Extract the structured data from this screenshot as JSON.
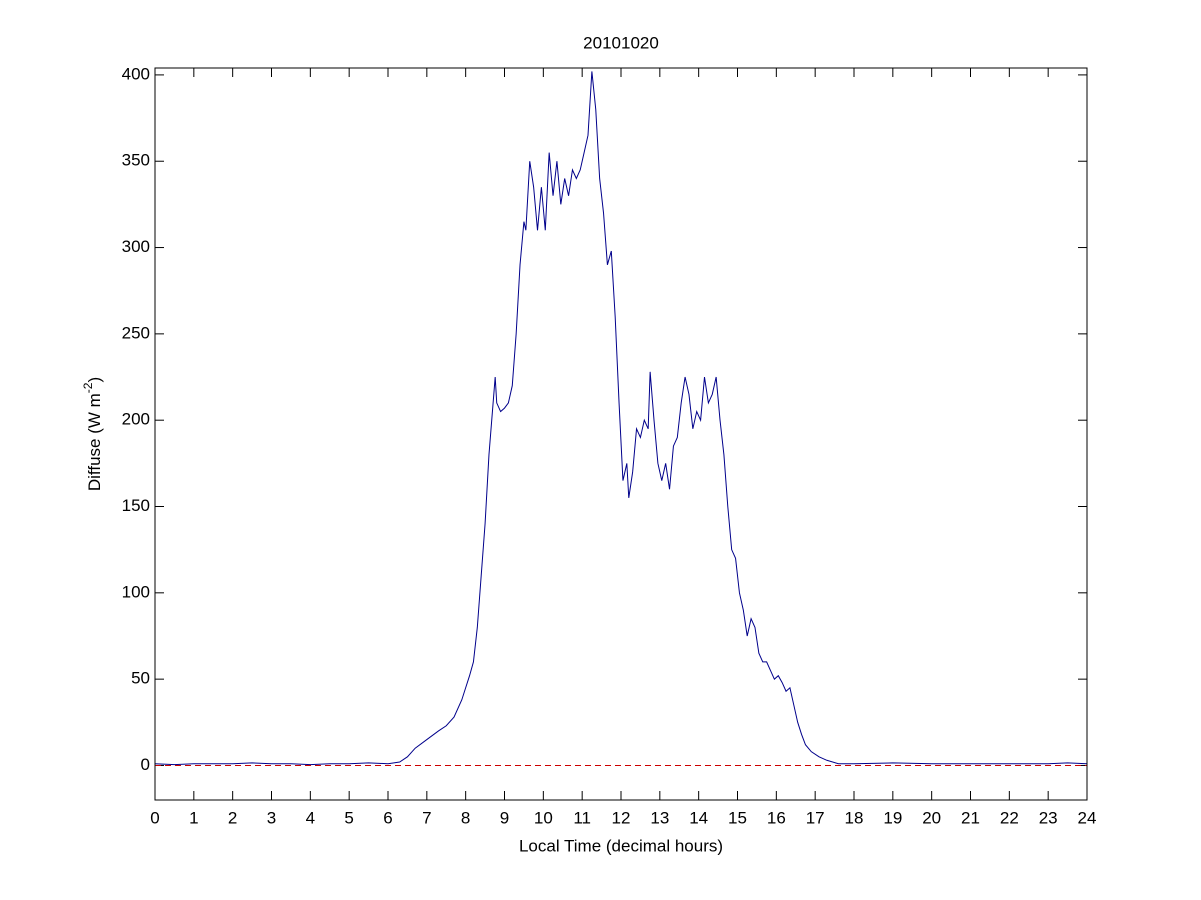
{
  "chart_data": {
    "type": "line",
    "title": "20101020",
    "xlabel": "Local Time (decimal hours)",
    "ylabel": [
      "Diffuse (W m",
      "-2",
      ")"
    ],
    "xlim": [
      0,
      24
    ],
    "xticks": [
      0,
      1,
      2,
      3,
      4,
      5,
      6,
      7,
      8,
      9,
      10,
      11,
      12,
      13,
      14,
      15,
      16,
      17,
      18,
      19,
      20,
      21,
      22,
      23,
      24
    ],
    "ylim": [
      -20,
      404
    ],
    "yticks": [
      0,
      50,
      100,
      150,
      200,
      250,
      300,
      350,
      400
    ],
    "series": [
      {
        "color": "#00008b",
        "style": "solid",
        "x": [
          0,
          0.5,
          1,
          2,
          2.5,
          3,
          3.5,
          4,
          4.5,
          5,
          5.5,
          6,
          6.3,
          6.5,
          6.7,
          7.0,
          7.3,
          7.5,
          7.7,
          7.9,
          8.0,
          8.1,
          8.2,
          8.3,
          8.4,
          8.5,
          8.6,
          8.76,
          8.8,
          8.9,
          9.0,
          9.1,
          9.2,
          9.3,
          9.4,
          9.5,
          9.55,
          9.65,
          9.75,
          9.85,
          9.95,
          10.05,
          10.15,
          10.25,
          10.35,
          10.45,
          10.55,
          10.65,
          10.75,
          10.85,
          10.95,
          11.05,
          11.15,
          11.25,
          11.35,
          11.45,
          11.55,
          11.65,
          11.75,
          11.85,
          11.95,
          12.05,
          12.15,
          12.2,
          12.3,
          12.4,
          12.5,
          12.6,
          12.7,
          12.75,
          12.85,
          12.95,
          13.05,
          13.15,
          13.25,
          13.35,
          13.45,
          13.55,
          13.65,
          13.75,
          13.85,
          13.95,
          14.05,
          14.15,
          14.25,
          14.35,
          14.45,
          14.55,
          14.65,
          14.75,
          14.85,
          14.95,
          15.05,
          15.15,
          15.25,
          15.35,
          15.45,
          15.55,
          15.65,
          15.75,
          15.85,
          15.95,
          16.05,
          16.15,
          16.25,
          16.35,
          16.45,
          16.55,
          16.65,
          16.75,
          16.9,
          17.1,
          17.3,
          17.6,
          18,
          19,
          20,
          21,
          22,
          23,
          23.5,
          24
        ],
        "values": [
          1,
          0.5,
          1,
          1,
          1.5,
          1,
          1,
          0.5,
          1,
          1,
          1.5,
          1,
          2,
          5,
          10,
          15,
          20,
          23,
          28,
          38,
          45,
          52,
          60,
          80,
          110,
          140,
          180,
          225,
          210,
          205,
          207,
          210,
          220,
          250,
          290,
          315,
          310,
          350,
          335,
          310,
          335,
          310,
          355,
          330,
          350,
          325,
          340,
          330,
          345,
          340,
          345,
          355,
          365,
          402,
          380,
          340,
          320,
          290,
          298,
          260,
          210,
          165,
          175,
          155,
          170,
          195,
          190,
          200,
          195,
          228,
          200,
          175,
          165,
          175,
          160,
          185,
          190,
          210,
          225,
          215,
          195,
          205,
          200,
          225,
          210,
          215,
          225,
          200,
          180,
          150,
          125,
          120,
          100,
          90,
          75,
          85,
          80,
          65,
          60,
          60,
          55,
          50,
          52,
          48,
          43,
          45,
          35,
          25,
          18,
          12,
          8,
          5,
          3,
          1,
          1,
          1.5,
          1,
          1,
          1,
          1,
          1.5,
          1
        ]
      },
      {
        "color": "#cc0000",
        "style": "dashed",
        "x": [
          0,
          24
        ],
        "values": [
          0,
          0
        ]
      }
    ]
  }
}
